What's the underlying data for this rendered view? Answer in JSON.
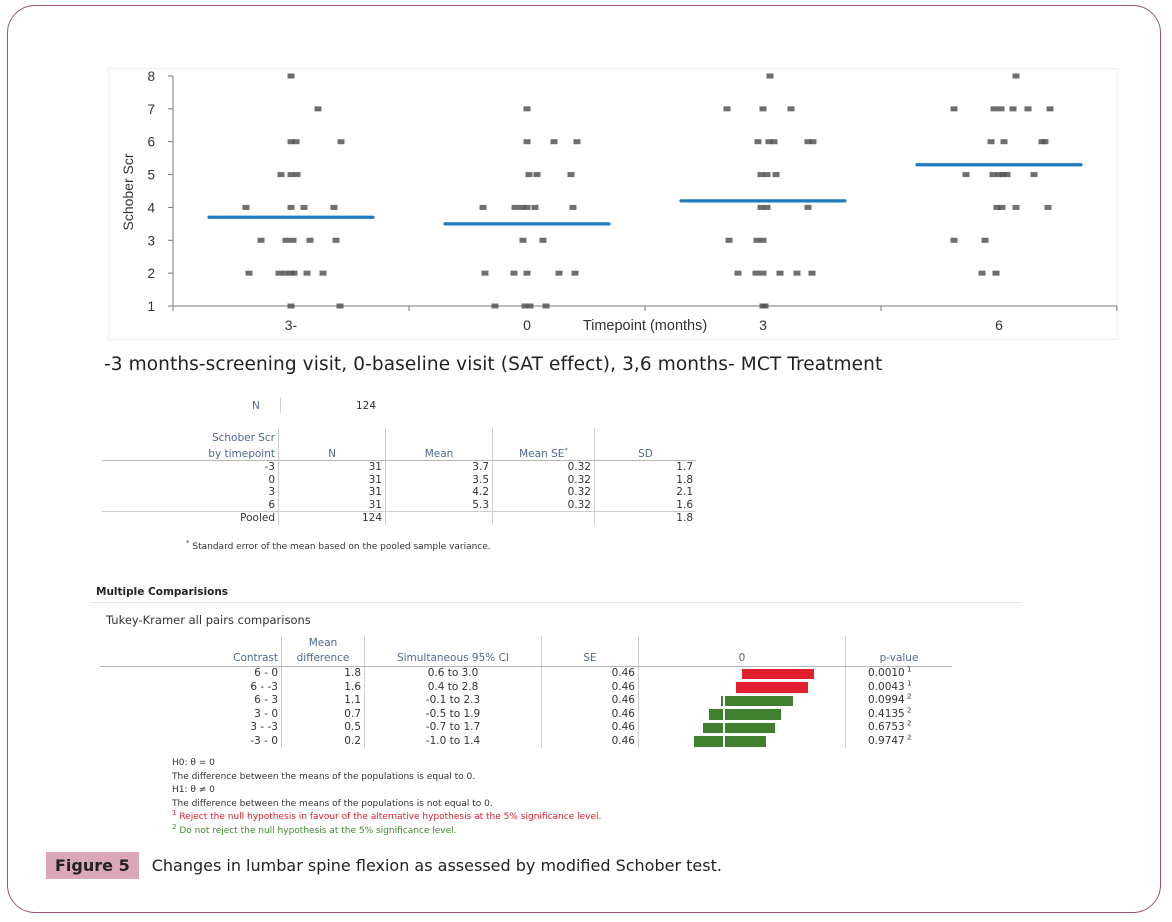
{
  "chart_data": {
    "type": "scatter",
    "title": "",
    "xlabel": "Timepoint (months)",
    "ylabel": "Schober Scr",
    "ylim": [
      1,
      8
    ],
    "yticks": [
      "1",
      "2",
      "3",
      "4",
      "5",
      "6",
      "7",
      "8"
    ],
    "categories": [
      "3-",
      "0",
      "3",
      "6"
    ],
    "grid": false,
    "means": [
      3.7,
      3.5,
      4.2,
      5.3
    ],
    "series": [
      {
        "name": "-3",
        "points": [
          {
            "dx": 0,
            "y": 8
          },
          {
            "dx": 0.27,
            "y": 7
          },
          {
            "dx": 0,
            "y": 6
          },
          {
            "dx": 0.05,
            "y": 6
          },
          {
            "dx": 0.5,
            "y": 6
          },
          {
            "dx": -0.1,
            "y": 5
          },
          {
            "dx": 0,
            "y": 5
          },
          {
            "dx": 0.06,
            "y": 5
          },
          {
            "dx": -0.45,
            "y": 4
          },
          {
            "dx": 0,
            "y": 4
          },
          {
            "dx": 0.13,
            "y": 4
          },
          {
            "dx": 0.43,
            "y": 4
          },
          {
            "dx": -0.3,
            "y": 3
          },
          {
            "dx": -0.05,
            "y": 3
          },
          {
            "dx": 0.02,
            "y": 3
          },
          {
            "dx": 0.19,
            "y": 3
          },
          {
            "dx": 0.45,
            "y": 3
          },
          {
            "dx": -0.42,
            "y": 2
          },
          {
            "dx": -0.12,
            "y": 2
          },
          {
            "dx": -0.06,
            "y": 2
          },
          {
            "dx": 0,
            "y": 2
          },
          {
            "dx": 0.03,
            "y": 2
          },
          {
            "dx": 0.16,
            "y": 2
          },
          {
            "dx": 0.32,
            "y": 2
          },
          {
            "dx": 0,
            "y": 1
          },
          {
            "dx": 0.49,
            "y": 1
          }
        ]
      },
      {
        "name": "0",
        "points": [
          {
            "dx": 0,
            "y": 7
          },
          {
            "dx": 0,
            "y": 6
          },
          {
            "dx": 0.27,
            "y": 6
          },
          {
            "dx": 0.5,
            "y": 6
          },
          {
            "dx": 0.02,
            "y": 5
          },
          {
            "dx": 0.1,
            "y": 5
          },
          {
            "dx": 0.44,
            "y": 5
          },
          {
            "dx": -0.44,
            "y": 4
          },
          {
            "dx": -0.12,
            "y": 4
          },
          {
            "dx": -0.05,
            "y": 4
          },
          {
            "dx": 0,
            "y": 4
          },
          {
            "dx": 0.08,
            "y": 4
          },
          {
            "dx": 0.46,
            "y": 4
          },
          {
            "dx": -0.04,
            "y": 3
          },
          {
            "dx": 0.16,
            "y": 3
          },
          {
            "dx": -0.42,
            "y": 2
          },
          {
            "dx": -0.13,
            "y": 2
          },
          {
            "dx": 0,
            "y": 2
          },
          {
            "dx": 0.32,
            "y": 2
          },
          {
            "dx": 0.48,
            "y": 2
          },
          {
            "dx": -0.32,
            "y": 1
          },
          {
            "dx": -0.02,
            "y": 1
          },
          {
            "dx": 0.03,
            "y": 1
          },
          {
            "dx": 0.19,
            "y": 1
          }
        ]
      },
      {
        "name": "3",
        "points": [
          {
            "dx": 0.07,
            "y": 8
          },
          {
            "dx": -0.36,
            "y": 7
          },
          {
            "dx": 0,
            "y": 7
          },
          {
            "dx": 0.28,
            "y": 7
          },
          {
            "dx": -0.05,
            "y": 6
          },
          {
            "dx": 0.06,
            "y": 6
          },
          {
            "dx": 0.11,
            "y": 6
          },
          {
            "dx": 0.45,
            "y": 6
          },
          {
            "dx": 0.5,
            "y": 6
          },
          {
            "dx": -0.02,
            "y": 5
          },
          {
            "dx": 0.04,
            "y": 5
          },
          {
            "dx": 0.13,
            "y": 5
          },
          {
            "dx": -0.02,
            "y": 4
          },
          {
            "dx": 0.04,
            "y": 4
          },
          {
            "dx": 0.45,
            "y": 4
          },
          {
            "dx": -0.34,
            "y": 3
          },
          {
            "dx": -0.06,
            "y": 3
          },
          {
            "dx": 0,
            "y": 3
          },
          {
            "dx": -0.25,
            "y": 2
          },
          {
            "dx": -0.07,
            "y": 2
          },
          {
            "dx": 0,
            "y": 2
          },
          {
            "dx": 0.17,
            "y": 2
          },
          {
            "dx": 0.34,
            "y": 2
          },
          {
            "dx": 0.49,
            "y": 2
          },
          {
            "dx": 0,
            "y": 1
          },
          {
            "dx": 0.02,
            "y": 1
          }
        ]
      },
      {
        "name": "6",
        "points": [
          {
            "dx": 0.17,
            "y": 8
          },
          {
            "dx": -0.45,
            "y": 7
          },
          {
            "dx": -0.05,
            "y": 7
          },
          {
            "dx": 0.02,
            "y": 7
          },
          {
            "dx": 0.14,
            "y": 7
          },
          {
            "dx": 0.29,
            "y": 7
          },
          {
            "dx": 0.51,
            "y": 7
          },
          {
            "dx": -0.08,
            "y": 6
          },
          {
            "dx": 0.05,
            "y": 6
          },
          {
            "dx": 0.43,
            "y": 6
          },
          {
            "dx": 0.46,
            "y": 6
          },
          {
            "dx": -0.33,
            "y": 5
          },
          {
            "dx": -0.06,
            "y": 5
          },
          {
            "dx": 0,
            "y": 5
          },
          {
            "dx": 0.04,
            "y": 5
          },
          {
            "dx": 0.08,
            "y": 5
          },
          {
            "dx": 0.35,
            "y": 5
          },
          {
            "dx": -0.02,
            "y": 4
          },
          {
            "dx": 0.03,
            "y": 4
          },
          {
            "dx": 0.17,
            "y": 4
          },
          {
            "dx": 0.49,
            "y": 4
          },
          {
            "dx": -0.45,
            "y": 3
          },
          {
            "dx": -0.14,
            "y": 3
          },
          {
            "dx": -0.17,
            "y": 2
          },
          {
            "dx": -0.03,
            "y": 2
          }
        ]
      }
    ],
    "colors": {
      "points": "#555555",
      "mean_line": "#1f7ac0"
    }
  },
  "subtitle": "-3 months-screening visit, 0-baseline visit (SAT effect), 3,6  months- MCT Treatment",
  "summary": {
    "n_label": "N",
    "n_value": "124",
    "headers": [
      "Schober Scr",
      "by timepoint",
      "N",
      "Mean",
      "Mean SE",
      "SD"
    ],
    "se_footnote_mark": "*",
    "rows": [
      {
        "label": "-3",
        "n": "31",
        "mean": "3.7",
        "se": "0.32",
        "sd": "1.7"
      },
      {
        "label": "0",
        "n": "31",
        "mean": "3.5",
        "se": "0.32",
        "sd": "1.8"
      },
      {
        "label": "3",
        "n": "31",
        "mean": "4.2",
        "se": "0.32",
        "sd": "2.1"
      },
      {
        "label": "6",
        "n": "31",
        "mean": "5.3",
        "se": "0.32",
        "sd": "1.6"
      },
      {
        "label": "Pooled",
        "n": "124",
        "mean": "",
        "se": "",
        "sd": "1.8"
      }
    ],
    "footnote": "Standard error of the mean based on the pooled sample variance."
  },
  "comparisons": {
    "title": "Multiple Comparisions",
    "subtitle": "Tukey-Kramer all pairs comparisons",
    "headers": {
      "contrast": "Contrast",
      "mean_diff_1": "Mean",
      "mean_diff_2": "difference",
      "ci": "Simultaneous 95% CI",
      "se": "SE",
      "zero": "0",
      "p": "p-value"
    },
    "rows": [
      {
        "contrast": "6 - 0",
        "diff": "1.8",
        "lo": 0.6,
        "hi": 3.0,
        "ci": "0.6  to 3.0",
        "se": "0.46",
        "p": "0.0010",
        "sig": "1"
      },
      {
        "contrast": "6 - -3",
        "diff": "1.6",
        "lo": 0.4,
        "hi": 2.8,
        "ci": "0.4  to 2.8",
        "se": "0.46",
        "p": "0.0043",
        "sig": "1"
      },
      {
        "contrast": "6 - 3",
        "diff": "1.1",
        "lo": -0.1,
        "hi": 2.3,
        "ci": "-0.1  to 2.3",
        "se": "0.46",
        "p": "0.0994",
        "sig": "2"
      },
      {
        "contrast": "3 - 0",
        "diff": "0.7",
        "lo": -0.5,
        "hi": 1.9,
        "ci": "-0.5  to 1.9",
        "se": "0.46",
        "p": "0.4135",
        "sig": "2"
      },
      {
        "contrast": "3 - -3",
        "diff": "0.5",
        "lo": -0.7,
        "hi": 1.7,
        "ci": "-0.7  to 1.7",
        "se": "0.46",
        "p": "0.6753",
        "sig": "2"
      },
      {
        "contrast": "-3 - 0",
        "diff": "0.2",
        "lo": -1.0,
        "hi": 1.4,
        "ci": "-1.0  to 1.4",
        "se": "0.46",
        "p": "0.9747",
        "sig": "2"
      }
    ],
    "colors": {
      "significant": "#e0202e",
      "not_significant": "#3f7f2f"
    },
    "notes": {
      "h0": "H0: θ = 0",
      "h0_text": "The difference between the means of the populations is equal to 0.",
      "h1": "H1: θ ≠ 0",
      "h1_text": "The difference between the means of the populations is not equal to 0.",
      "note1_mark": "1",
      "note1": " Reject the null hypothesis in favour of the alternative hypothesis at the 5% significance level.",
      "note2_mark": "2",
      "note2": " Do not reject the null hypothesis at the 5% significance level."
    }
  },
  "caption": {
    "label": "Figure 5",
    "text": "Changes in lumbar spine flexion as assessed by modified Schober test."
  }
}
